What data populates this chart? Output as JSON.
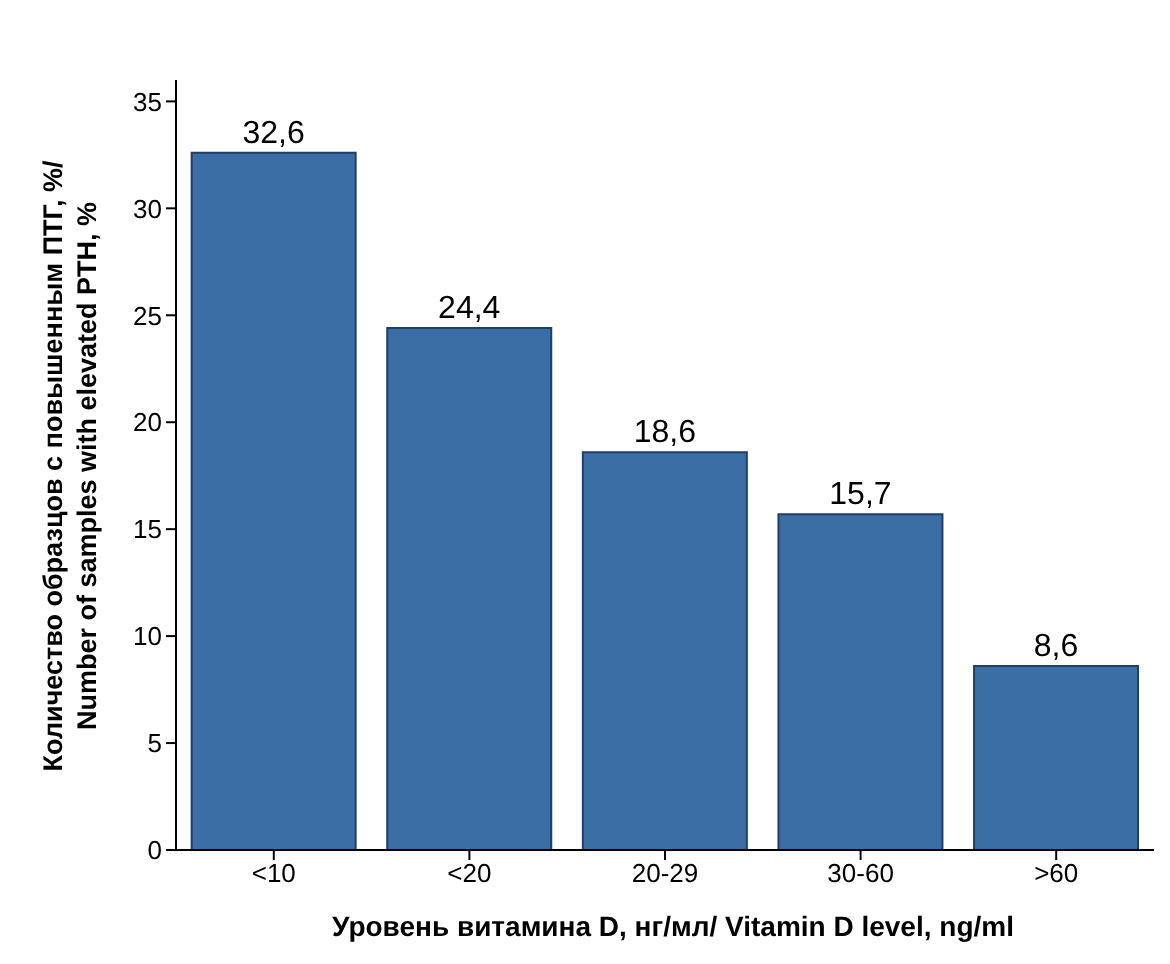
{
  "chart_data": {
    "type": "bar",
    "xlabel": "Уровень витамина D, нг/мл/ Vitamin D level, ng/ml",
    "ylabel": "Количество образцов с повышенным ПТГ, %/ Number of samples with elevated PTH, %",
    "categories": [
      "<10",
      "<20",
      "20-29",
      "30-60",
      ">60"
    ],
    "values": [
      32.6,
      24.4,
      18.6,
      15.7,
      8.6
    ],
    "value_labels": [
      "32,6",
      "24,4",
      "18,6",
      "15,7",
      "8,6"
    ],
    "color": "#3b6ea5",
    "ylim": [
      0,
      36
    ],
    "yticks": [
      0,
      5,
      10,
      15,
      20,
      25,
      30,
      35
    ],
    "grid": false,
    "legend": false
  }
}
